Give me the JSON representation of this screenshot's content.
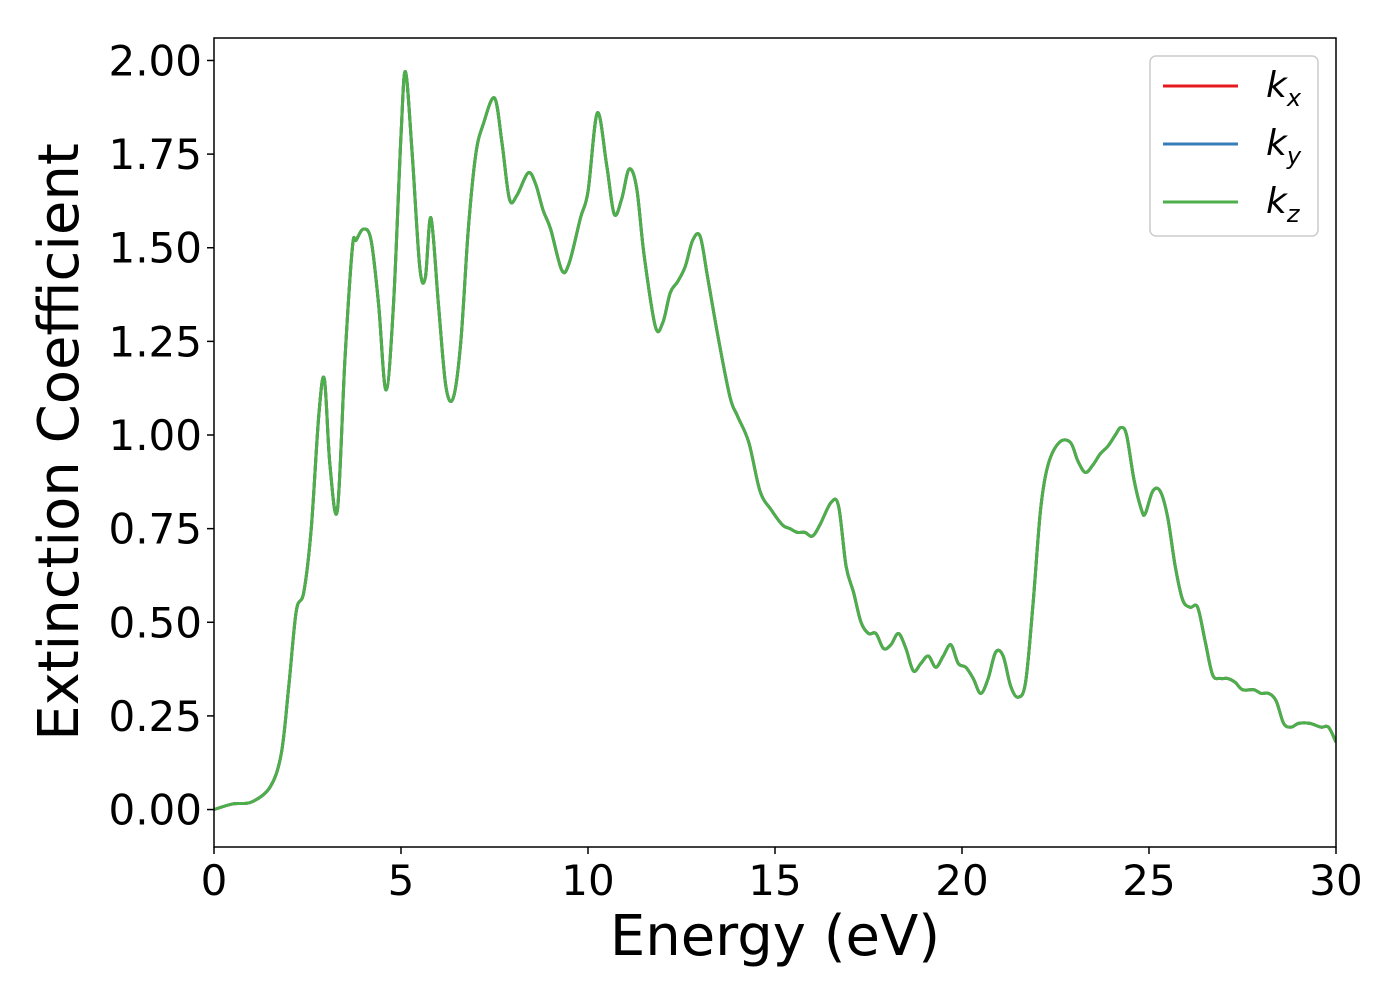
{
  "chart_data": {
    "type": "line",
    "title": "",
    "xlabel": "Energy (eV)",
    "ylabel": "Extinction Coefficient",
    "xlim": [
      0,
      30
    ],
    "ylim": [
      -0.1,
      2.06
    ],
    "xticks": [
      0,
      5,
      10,
      15,
      20,
      25,
      30
    ],
    "xtick_labels": [
      "0",
      "5",
      "10",
      "15",
      "20",
      "25",
      "30"
    ],
    "yticks": [
      0,
      0.25,
      0.5,
      0.75,
      1.0,
      1.25,
      1.5,
      1.75,
      2.0
    ],
    "ytick_labels": [
      "0.00",
      "0.25",
      "0.50",
      "0.75",
      "1.00",
      "1.25",
      "1.50",
      "1.75",
      "2.00"
    ],
    "grid": false,
    "legend_position": "top-right",
    "x": [
      0,
      0.5,
      1.0,
      1.5,
      1.8,
      2.0,
      2.2,
      2.4,
      2.6,
      2.8,
      2.95,
      3.1,
      3.3,
      3.5,
      3.7,
      3.8,
      4.0,
      4.2,
      4.4,
      4.6,
      4.8,
      5.0,
      5.12,
      5.3,
      5.5,
      5.65,
      5.8,
      6.0,
      6.2,
      6.4,
      6.6,
      6.8,
      7.0,
      7.2,
      7.5,
      7.7,
      7.9,
      8.1,
      8.4,
      8.6,
      8.8,
      9.0,
      9.3,
      9.5,
      9.8,
      10.0,
      10.25,
      10.5,
      10.7,
      10.9,
      11.1,
      11.3,
      11.5,
      11.8,
      12.0,
      12.2,
      12.4,
      12.6,
      12.8,
      13.0,
      13.2,
      13.5,
      13.8,
      14.0,
      14.3,
      14.6,
      14.9,
      15.2,
      15.4,
      15.6,
      15.8,
      16.0,
      16.2,
      16.5,
      16.7,
      16.9,
      17.1,
      17.3,
      17.5,
      17.7,
      17.9,
      18.1,
      18.3,
      18.5,
      18.7,
      18.9,
      19.1,
      19.3,
      19.5,
      19.7,
      19.9,
      20.1,
      20.3,
      20.5,
      20.7,
      20.9,
      21.1,
      21.3,
      21.5,
      21.7,
      21.9,
      22.1,
      22.3,
      22.6,
      22.9,
      23.1,
      23.3,
      23.5,
      23.7,
      23.9,
      24.1,
      24.25,
      24.4,
      24.6,
      24.8,
      24.9,
      25.1,
      25.3,
      25.5,
      25.7,
      25.9,
      26.1,
      26.3,
      26.5,
      26.7,
      26.9,
      27.1,
      27.3,
      27.5,
      27.8,
      28.0,
      28.2,
      28.4,
      28.6,
      28.8,
      29.0,
      29.3,
      29.6,
      29.8,
      30.0
    ],
    "series": [
      {
        "name": "k_x",
        "label_base": "k",
        "label_sub": "x",
        "color": "#e41a1c",
        "values": [
          0.0,
          0.015,
          0.02,
          0.06,
          0.15,
          0.33,
          0.53,
          0.58,
          0.75,
          1.05,
          1.15,
          0.92,
          0.8,
          1.2,
          1.5,
          1.52,
          1.55,
          1.52,
          1.35,
          1.12,
          1.35,
          1.8,
          1.97,
          1.75,
          1.45,
          1.42,
          1.58,
          1.35,
          1.13,
          1.1,
          1.25,
          1.55,
          1.75,
          1.83,
          1.9,
          1.78,
          1.63,
          1.64,
          1.7,
          1.67,
          1.6,
          1.55,
          1.44,
          1.46,
          1.58,
          1.65,
          1.86,
          1.72,
          1.59,
          1.63,
          1.71,
          1.66,
          1.48,
          1.29,
          1.3,
          1.38,
          1.41,
          1.45,
          1.52,
          1.53,
          1.42,
          1.25,
          1.1,
          1.05,
          0.98,
          0.85,
          0.8,
          0.76,
          0.75,
          0.74,
          0.74,
          0.73,
          0.76,
          0.82,
          0.81,
          0.65,
          0.58,
          0.5,
          0.47,
          0.47,
          0.43,
          0.44,
          0.47,
          0.43,
          0.37,
          0.39,
          0.41,
          0.38,
          0.41,
          0.44,
          0.39,
          0.38,
          0.35,
          0.31,
          0.35,
          0.42,
          0.41,
          0.33,
          0.3,
          0.34,
          0.55,
          0.8,
          0.92,
          0.98,
          0.98,
          0.93,
          0.9,
          0.92,
          0.95,
          0.97,
          1.0,
          1.02,
          1.0,
          0.88,
          0.8,
          0.79,
          0.85,
          0.85,
          0.78,
          0.65,
          0.56,
          0.54,
          0.54,
          0.45,
          0.36,
          0.35,
          0.35,
          0.34,
          0.32,
          0.32,
          0.31,
          0.31,
          0.29,
          0.23,
          0.22,
          0.23,
          0.23,
          0.22,
          0.22,
          0.18
        ]
      },
      {
        "name": "k_y",
        "label_base": "k",
        "label_sub": "y",
        "color": "#377eb8",
        "values": [
          0.0,
          0.015,
          0.02,
          0.06,
          0.15,
          0.33,
          0.53,
          0.58,
          0.75,
          1.05,
          1.15,
          0.92,
          0.8,
          1.2,
          1.5,
          1.52,
          1.55,
          1.52,
          1.35,
          1.12,
          1.35,
          1.8,
          1.97,
          1.75,
          1.45,
          1.42,
          1.58,
          1.35,
          1.13,
          1.1,
          1.25,
          1.55,
          1.75,
          1.83,
          1.9,
          1.78,
          1.63,
          1.64,
          1.7,
          1.67,
          1.6,
          1.55,
          1.44,
          1.46,
          1.58,
          1.65,
          1.86,
          1.72,
          1.59,
          1.63,
          1.71,
          1.66,
          1.48,
          1.29,
          1.3,
          1.38,
          1.41,
          1.45,
          1.52,
          1.53,
          1.42,
          1.25,
          1.1,
          1.05,
          0.98,
          0.85,
          0.8,
          0.76,
          0.75,
          0.74,
          0.74,
          0.73,
          0.76,
          0.82,
          0.81,
          0.65,
          0.58,
          0.5,
          0.47,
          0.47,
          0.43,
          0.44,
          0.47,
          0.43,
          0.37,
          0.39,
          0.41,
          0.38,
          0.41,
          0.44,
          0.39,
          0.38,
          0.35,
          0.31,
          0.35,
          0.42,
          0.41,
          0.33,
          0.3,
          0.34,
          0.55,
          0.8,
          0.92,
          0.98,
          0.98,
          0.93,
          0.9,
          0.92,
          0.95,
          0.97,
          1.0,
          1.02,
          1.0,
          0.88,
          0.8,
          0.79,
          0.85,
          0.85,
          0.78,
          0.65,
          0.56,
          0.54,
          0.54,
          0.45,
          0.36,
          0.35,
          0.35,
          0.34,
          0.32,
          0.32,
          0.31,
          0.31,
          0.29,
          0.23,
          0.22,
          0.23,
          0.23,
          0.22,
          0.22,
          0.18
        ]
      },
      {
        "name": "k_z",
        "label_base": "k",
        "label_sub": "z",
        "color": "#4daf4a",
        "values": [
          0.0,
          0.015,
          0.02,
          0.06,
          0.15,
          0.33,
          0.53,
          0.58,
          0.75,
          1.05,
          1.15,
          0.92,
          0.8,
          1.2,
          1.5,
          1.52,
          1.55,
          1.52,
          1.35,
          1.12,
          1.35,
          1.8,
          1.97,
          1.75,
          1.45,
          1.42,
          1.58,
          1.35,
          1.13,
          1.1,
          1.25,
          1.55,
          1.75,
          1.83,
          1.9,
          1.78,
          1.63,
          1.64,
          1.7,
          1.67,
          1.6,
          1.55,
          1.44,
          1.46,
          1.58,
          1.65,
          1.86,
          1.72,
          1.59,
          1.63,
          1.71,
          1.66,
          1.48,
          1.29,
          1.3,
          1.38,
          1.41,
          1.45,
          1.52,
          1.53,
          1.42,
          1.25,
          1.1,
          1.05,
          0.98,
          0.85,
          0.8,
          0.76,
          0.75,
          0.74,
          0.74,
          0.73,
          0.76,
          0.82,
          0.81,
          0.65,
          0.58,
          0.5,
          0.47,
          0.47,
          0.43,
          0.44,
          0.47,
          0.43,
          0.37,
          0.39,
          0.41,
          0.38,
          0.41,
          0.44,
          0.39,
          0.38,
          0.35,
          0.31,
          0.35,
          0.42,
          0.41,
          0.33,
          0.3,
          0.34,
          0.55,
          0.8,
          0.92,
          0.98,
          0.98,
          0.93,
          0.9,
          0.92,
          0.95,
          0.97,
          1.0,
          1.02,
          1.0,
          0.88,
          0.8,
          0.79,
          0.85,
          0.85,
          0.78,
          0.65,
          0.56,
          0.54,
          0.54,
          0.45,
          0.36,
          0.35,
          0.35,
          0.34,
          0.32,
          0.32,
          0.31,
          0.31,
          0.29,
          0.23,
          0.22,
          0.23,
          0.23,
          0.22,
          0.22,
          0.18
        ]
      }
    ]
  }
}
